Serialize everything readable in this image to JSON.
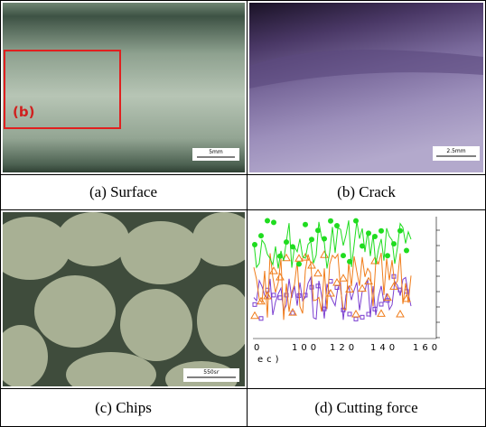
{
  "panels": [
    {
      "caption": "(a)  Surface",
      "inset_label": "(b)",
      "scale_bar": "5mm"
    },
    {
      "caption": "(b)  Crack",
      "scale_bar": "2.5mm"
    },
    {
      "caption": "(c)  Chips",
      "scale_bar": "550㏛"
    },
    {
      "caption": "(d)  Cutting force",
      "x_tick_labels": [
        "0",
        "100",
        "120",
        "140",
        "160"
      ],
      "x_axis_label": "ec)"
    }
  ]
}
